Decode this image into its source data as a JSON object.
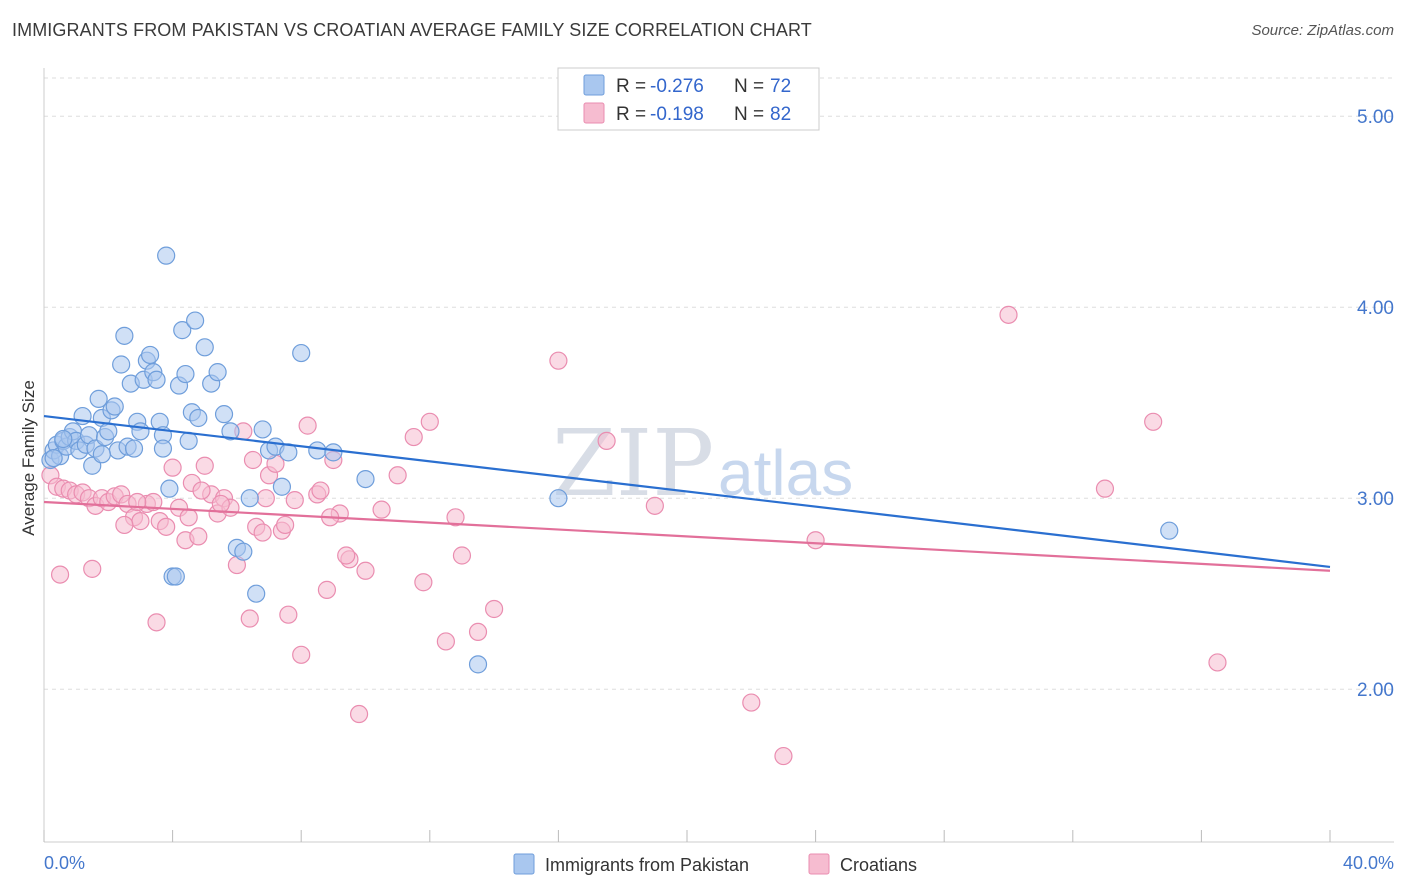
{
  "title": "IMMIGRANTS FROM PAKISTAN VS CROATIAN AVERAGE FAMILY SIZE CORRELATION CHART",
  "source": "Source: ZipAtlas.com",
  "watermark": {
    "zip": "ZIP",
    "atlas": "atlas"
  },
  "colors": {
    "blue_fill": "#a9c7ef",
    "blue_stroke": "#6f9edb",
    "blue_line": "#2a6fd0",
    "pink_fill": "#f6bcd0",
    "pink_stroke": "#ea8db0",
    "pink_line": "#e2709a",
    "grid": "#dddddd",
    "axis_text": "#4477cc"
  },
  "legend": {
    "rows": [
      {
        "r_label": "R =",
        "r_value": "-0.276",
        "n_label": "N =",
        "n_value": "72"
      },
      {
        "r_label": "R =",
        "r_value": "-0.198",
        "n_label": "N =",
        "n_value": "82"
      }
    ]
  },
  "bottom_legend": [
    "Immigrants from Pakistan",
    "Croatians"
  ],
  "chart_data": {
    "type": "scatter",
    "xlabel": "",
    "ylabel": "Average Family Size",
    "xlim": [
      0,
      40
    ],
    "ylim": [
      1.2,
      5.2
    ],
    "x_tick_labels": [
      "0.0%",
      "40.0%"
    ],
    "y_ticks": [
      2.0,
      3.0,
      4.0,
      5.0
    ],
    "y_tick_labels": [
      "2.00",
      "3.00",
      "4.00",
      "5.00"
    ],
    "legend_position": "top-center",
    "grid": true,
    "series": [
      {
        "name": "Immigrants from Pakistan",
        "color": "#6f9edb",
        "trend": {
          "x": [
            0,
            40
          ],
          "y": [
            3.43,
            2.64
          ]
        },
        "x": [
          0.2,
          0.3,
          0.4,
          0.5,
          0.6,
          0.7,
          0.8,
          0.9,
          1.0,
          1.1,
          1.2,
          1.3,
          1.4,
          1.5,
          1.6,
          1.7,
          1.8,
          1.9,
          2.0,
          2.1,
          2.2,
          2.3,
          2.4,
          2.5,
          2.6,
          2.7,
          2.8,
          2.9,
          3.0,
          3.1,
          3.2,
          3.3,
          3.4,
          3.5,
          3.6,
          3.7,
          3.8,
          3.9,
          4.0,
          4.1,
          4.2,
          4.3,
          4.4,
          4.5,
          4.6,
          4.7,
          4.8,
          5.0,
          5.2,
          5.4,
          5.6,
          5.8,
          6.0,
          6.2,
          6.4,
          6.6,
          6.8,
          7.0,
          7.2,
          7.4,
          7.6,
          8.0,
          8.5,
          9.0,
          10.0,
          13.5,
          16.0,
          35.0,
          0.3,
          0.6,
          1.8,
          3.7
        ],
        "y": [
          3.2,
          3.25,
          3.28,
          3.22,
          3.3,
          3.27,
          3.32,
          3.35,
          3.3,
          3.25,
          3.43,
          3.28,
          3.33,
          3.17,
          3.26,
          3.52,
          3.42,
          3.32,
          3.35,
          3.46,
          3.48,
          3.25,
          3.7,
          3.85,
          3.27,
          3.6,
          3.26,
          3.4,
          3.35,
          3.62,
          3.72,
          3.75,
          3.66,
          3.62,
          3.4,
          3.33,
          4.27,
          3.05,
          2.59,
          2.59,
          3.59,
          3.88,
          3.65,
          3.3,
          3.45,
          3.93,
          3.42,
          3.79,
          3.6,
          3.66,
          3.44,
          3.35,
          2.74,
          2.72,
          3.0,
          2.5,
          3.36,
          3.25,
          3.27,
          3.06,
          3.24,
          3.76,
          3.25,
          3.24,
          3.1,
          2.13,
          3.0,
          2.83,
          3.21,
          3.31,
          3.23,
          3.26
        ]
      },
      {
        "name": "Croatians",
        "color": "#ea8db0",
        "trend": {
          "x": [
            0,
            40
          ],
          "y": [
            2.98,
            2.62
          ]
        },
        "x": [
          0.2,
          0.4,
          0.6,
          0.8,
          1.0,
          1.2,
          1.4,
          1.6,
          1.8,
          2.0,
          2.2,
          2.4,
          2.6,
          2.8,
          3.0,
          3.2,
          3.4,
          3.6,
          3.8,
          4.0,
          4.2,
          4.4,
          4.6,
          4.8,
          5.0,
          5.2,
          5.4,
          5.6,
          5.8,
          6.0,
          6.2,
          6.4,
          6.6,
          6.8,
          7.0,
          7.2,
          7.4,
          7.6,
          7.8,
          8.0,
          8.2,
          8.5,
          8.8,
          9.0,
          9.2,
          9.5,
          9.8,
          10.0,
          11.0,
          11.5,
          12.0,
          12.5,
          13.0,
          13.5,
          14.0,
          16.0,
          17.5,
          19.0,
          22.0,
          23.0,
          24.0,
          30.0,
          33.0,
          34.5,
          36.5,
          0.5,
          1.5,
          2.5,
          3.5,
          4.5,
          5.5,
          6.5,
          7.5,
          8.6,
          9.4,
          10.5,
          11.8,
          12.8,
          2.9,
          4.9,
          6.9,
          8.9
        ],
        "y": [
          3.12,
          3.06,
          3.05,
          3.04,
          3.02,
          3.03,
          3.0,
          2.96,
          3.0,
          2.98,
          3.01,
          3.02,
          2.97,
          2.9,
          2.88,
          2.97,
          2.98,
          2.88,
          2.85,
          3.16,
          2.95,
          2.78,
          3.08,
          2.8,
          3.17,
          3.02,
          2.92,
          3.0,
          2.95,
          2.65,
          3.35,
          2.37,
          2.85,
          2.82,
          3.12,
          3.18,
          2.83,
          2.39,
          2.99,
          2.18,
          3.38,
          3.02,
          2.52,
          3.2,
          2.92,
          2.68,
          1.87,
          2.62,
          3.12,
          3.32,
          3.4,
          2.25,
          2.7,
          2.3,
          2.42,
          3.72,
          3.3,
          2.96,
          1.93,
          1.65,
          2.78,
          3.96,
          3.05,
          3.4,
          2.14,
          2.6,
          2.63,
          2.86,
          2.35,
          2.9,
          2.97,
          3.2,
          2.86,
          3.04,
          2.7,
          2.94,
          2.56,
          2.9,
          2.98,
          3.04,
          3.0,
          2.9
        ]
      }
    ]
  }
}
